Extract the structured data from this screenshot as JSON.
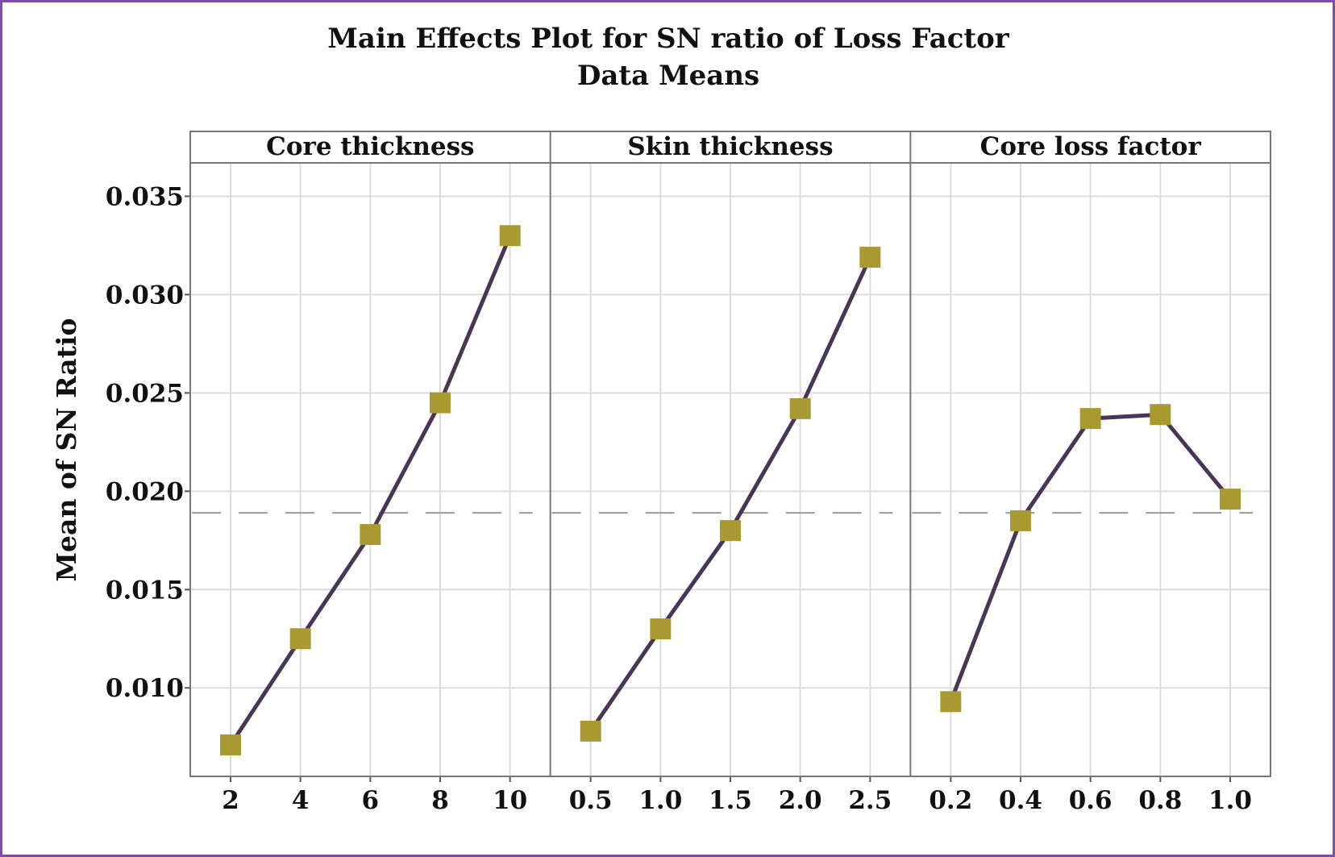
{
  "chart_data": {
    "type": "line",
    "title": "Main Effects Plot for SN ratio of Loss Factor",
    "subtitle": "Data Means",
    "ylabel": "Mean of SN Ratio",
    "ylim": [
      0.0055,
      0.0367
    ],
    "yticks": [
      "0.010",
      "0.015",
      "0.020",
      "0.025",
      "0.030",
      "0.035"
    ],
    "reference_mean": 0.0189,
    "grid": true,
    "colors": {
      "line": "#4a3556",
      "marker": "#a89a30",
      "mean_line": "#9a9a9a",
      "grid": "#dcdcdc",
      "frame": "#7b4fa6"
    },
    "panels": [
      {
        "name": "Core thickness",
        "categories": [
          "2",
          "4",
          "6",
          "8",
          "10"
        ],
        "values": [
          0.0071,
          0.0125,
          0.0178,
          0.0245,
          0.033
        ]
      },
      {
        "name": "Skin thickness",
        "categories": [
          "0.5",
          "1.0",
          "1.5",
          "2.0",
          "2.5"
        ],
        "values": [
          0.0078,
          0.013,
          0.018,
          0.0242,
          0.0319
        ]
      },
      {
        "name": "Core loss factor",
        "categories": [
          "0.2",
          "0.4",
          "0.6",
          "0.8",
          "1.0"
        ],
        "values": [
          0.0093,
          0.0185,
          0.0237,
          0.0239,
          0.0196
        ]
      }
    ]
  }
}
